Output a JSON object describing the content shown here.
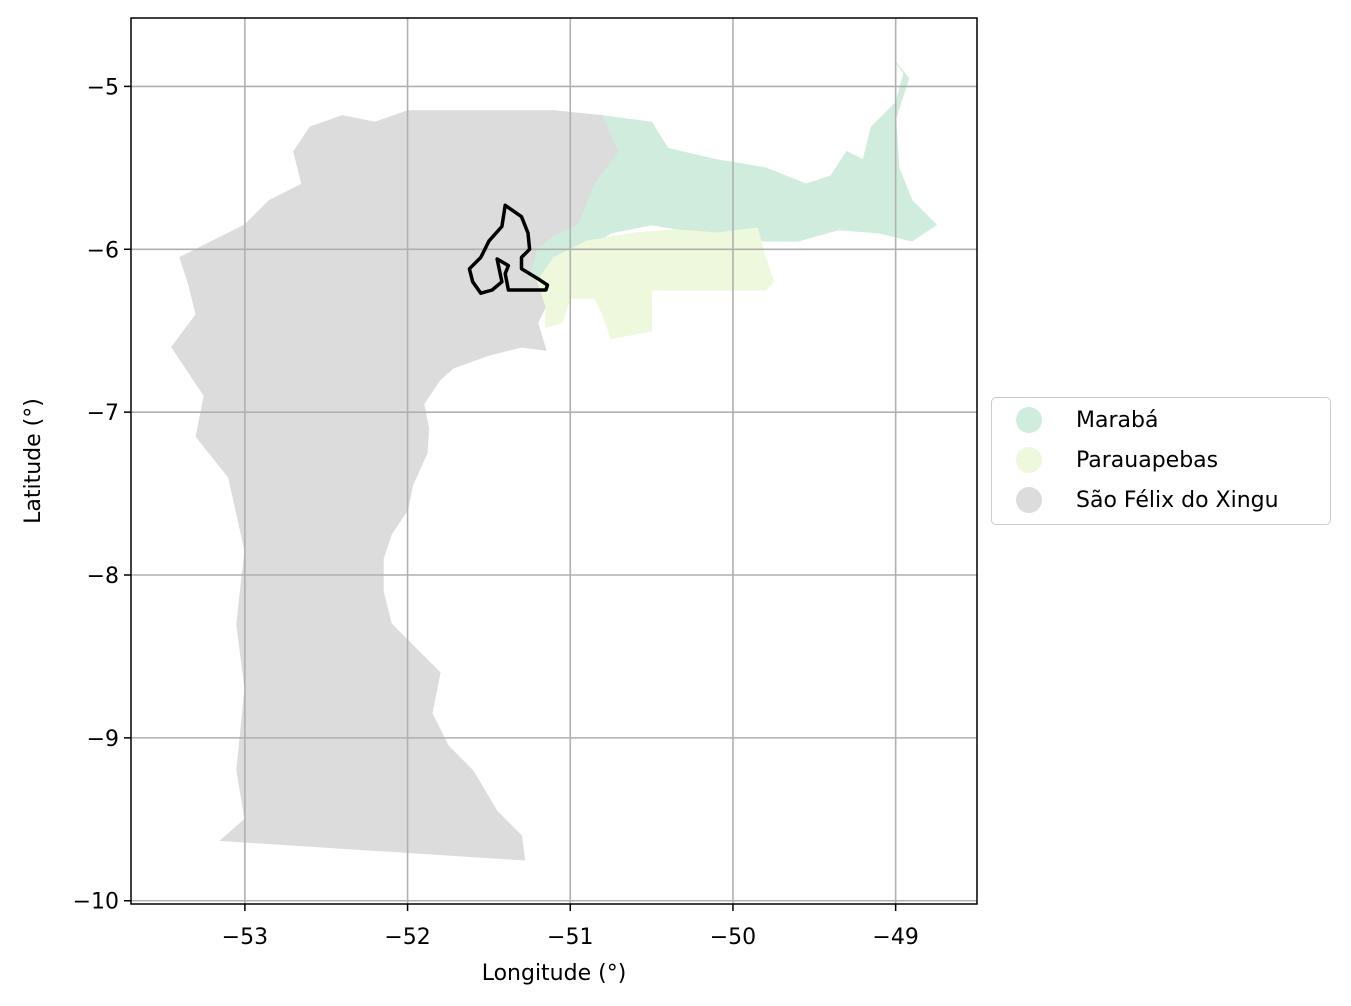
{
  "axes": {
    "xlabel": "Longitude (°)",
    "ylabel": "Latitude (°)",
    "xlim": [
      -53.7,
      -48.5
    ],
    "ylim": [
      -10.02,
      -4.58
    ],
    "xticks": [
      -53,
      -52,
      -51,
      -50,
      -49
    ],
    "yticks": [
      -5,
      -6,
      -7,
      -8,
      -9,
      -10
    ],
    "xtick_labels": [
      "−53",
      "−52",
      "−51",
      "−50",
      "−49"
    ],
    "ytick_labels": [
      "−5",
      "−6",
      "−7",
      "−8",
      "−9",
      "−10"
    ],
    "grid": true
  },
  "legend": {
    "placement": "right",
    "items": [
      {
        "label": "Marabá",
        "color": "#d0ecdd"
      },
      {
        "label": "Parauapebas",
        "color": "#eef8dc"
      },
      {
        "label": "São Félix do Xingu",
        "color": "#dcdcdc"
      }
    ]
  },
  "regions": [
    {
      "name": "São Félix do Xingu",
      "color": "#dcdcdc",
      "lonlat": [
        [
          -52.0,
          -5.15
        ],
        [
          -51.1,
          -5.15
        ],
        [
          -50.8,
          -5.18
        ],
        [
          -50.7,
          -5.4
        ],
        [
          -50.85,
          -5.6
        ],
        [
          -50.95,
          -5.85
        ],
        [
          -51.1,
          -5.95
        ],
        [
          -51.2,
          -6.1
        ],
        [
          -51.2,
          -6.2
        ],
        [
          -51.15,
          -6.35
        ],
        [
          -51.2,
          -6.45
        ],
        [
          -51.15,
          -6.62
        ],
        [
          -51.3,
          -6.6
        ],
        [
          -51.5,
          -6.65
        ],
        [
          -51.72,
          -6.73
        ],
        [
          -51.8,
          -6.8
        ],
        [
          -51.9,
          -6.95
        ],
        [
          -51.87,
          -7.1
        ],
        [
          -51.88,
          -7.25
        ],
        [
          -51.97,
          -7.45
        ],
        [
          -52.0,
          -7.6
        ],
        [
          -52.1,
          -7.75
        ],
        [
          -52.15,
          -7.9
        ],
        [
          -52.15,
          -8.1
        ],
        [
          -52.1,
          -8.3
        ],
        [
          -51.95,
          -8.45
        ],
        [
          -51.8,
          -8.6
        ],
        [
          -51.85,
          -8.85
        ],
        [
          -51.75,
          -9.05
        ],
        [
          -51.6,
          -9.2
        ],
        [
          -51.45,
          -9.45
        ],
        [
          -51.3,
          -9.6
        ],
        [
          -51.28,
          -9.75
        ],
        [
          -53.15,
          -9.63
        ],
        [
          -53.0,
          -9.5
        ],
        [
          -53.05,
          -9.2
        ],
        [
          -53.0,
          -8.7
        ],
        [
          -53.05,
          -8.3
        ],
        [
          -53.0,
          -7.85
        ],
        [
          -53.1,
          -7.4
        ],
        [
          -53.3,
          -7.15
        ],
        [
          -53.25,
          -6.9
        ],
        [
          -53.45,
          -6.6
        ],
        [
          -53.3,
          -6.4
        ],
        [
          -53.35,
          -6.2
        ],
        [
          -53.4,
          -6.05
        ],
        [
          -53.2,
          -5.95
        ],
        [
          -53.0,
          -5.85
        ],
        [
          -52.85,
          -5.7
        ],
        [
          -52.65,
          -5.6
        ],
        [
          -52.7,
          -5.4
        ],
        [
          -52.6,
          -5.25
        ],
        [
          -52.4,
          -5.18
        ],
        [
          -52.2,
          -5.22
        ]
      ]
    },
    {
      "name": "Marabá",
      "color": "#d0ecdd",
      "lonlat": [
        [
          -50.8,
          -5.18
        ],
        [
          -50.5,
          -5.22
        ],
        [
          -50.4,
          -5.38
        ],
        [
          -50.1,
          -5.45
        ],
        [
          -49.8,
          -5.5
        ],
        [
          -49.55,
          -5.6
        ],
        [
          -49.4,
          -5.55
        ],
        [
          -49.3,
          -5.4
        ],
        [
          -49.2,
          -5.45
        ],
        [
          -49.15,
          -5.25
        ],
        [
          -49.0,
          -5.1
        ],
        [
          -48.95,
          -4.92
        ],
        [
          -49.0,
          -4.85
        ],
        [
          -48.92,
          -4.95
        ],
        [
          -49.0,
          -5.2
        ],
        [
          -48.98,
          -5.5
        ],
        [
          -48.9,
          -5.7
        ],
        [
          -48.75,
          -5.85
        ],
        [
          -48.9,
          -5.95
        ],
        [
          -49.1,
          -5.9
        ],
        [
          -49.35,
          -5.88
        ],
        [
          -49.6,
          -5.95
        ],
        [
          -49.8,
          -5.95
        ],
        [
          -50.2,
          -5.9
        ],
        [
          -50.5,
          -5.85
        ],
        [
          -50.75,
          -5.9
        ],
        [
          -50.9,
          -6.0
        ],
        [
          -51.05,
          -6.05
        ],
        [
          -51.12,
          -6.2
        ],
        [
          -51.25,
          -6.18
        ],
        [
          -51.2,
          -6.0
        ],
        [
          -51.1,
          -5.92
        ],
        [
          -50.95,
          -5.85
        ],
        [
          -50.85,
          -5.6
        ],
        [
          -50.7,
          -5.4
        ]
      ]
    },
    {
      "name": "Parauapebas",
      "color": "#eef8dc",
      "lonlat": [
        [
          -51.1,
          -6.05
        ],
        [
          -50.9,
          -5.95
        ],
        [
          -50.6,
          -5.9
        ],
        [
          -50.35,
          -5.88
        ],
        [
          -50.1,
          -5.9
        ],
        [
          -49.85,
          -5.87
        ],
        [
          -49.8,
          -6.05
        ],
        [
          -49.75,
          -6.2
        ],
        [
          -49.8,
          -6.25
        ],
        [
          -50.5,
          -6.25
        ],
        [
          -50.5,
          -6.5
        ],
        [
          -50.75,
          -6.55
        ],
        [
          -50.8,
          -6.4
        ],
        [
          -50.85,
          -6.3
        ],
        [
          -51.0,
          -6.3
        ],
        [
          -51.05,
          -6.45
        ],
        [
          -51.15,
          -6.48
        ],
        [
          -51.15,
          -6.35
        ],
        [
          -51.2,
          -6.2
        ],
        [
          -51.15,
          -6.12
        ]
      ]
    }
  ],
  "outline": {
    "color": "#000000",
    "lonlat": [
      [
        -51.4,
        -5.73
      ],
      [
        -51.3,
        -5.8
      ],
      [
        -51.26,
        -5.9
      ],
      [
        -51.25,
        -6.0
      ],
      [
        -51.3,
        -6.05
      ],
      [
        -51.3,
        -6.12
      ],
      [
        -51.2,
        -6.18
      ],
      [
        -51.14,
        -6.22
      ],
      [
        -51.15,
        -6.25
      ],
      [
        -51.38,
        -6.25
      ],
      [
        -51.4,
        -6.15
      ],
      [
        -51.38,
        -6.1
      ],
      [
        -51.45,
        -6.06
      ],
      [
        -51.42,
        -6.2
      ],
      [
        -51.48,
        -6.25
      ],
      [
        -51.55,
        -6.27
      ],
      [
        -51.6,
        -6.2
      ],
      [
        -51.62,
        -6.12
      ],
      [
        -51.55,
        -6.05
      ],
      [
        -51.5,
        -5.95
      ],
      [
        -51.42,
        -5.86
      ]
    ]
  }
}
